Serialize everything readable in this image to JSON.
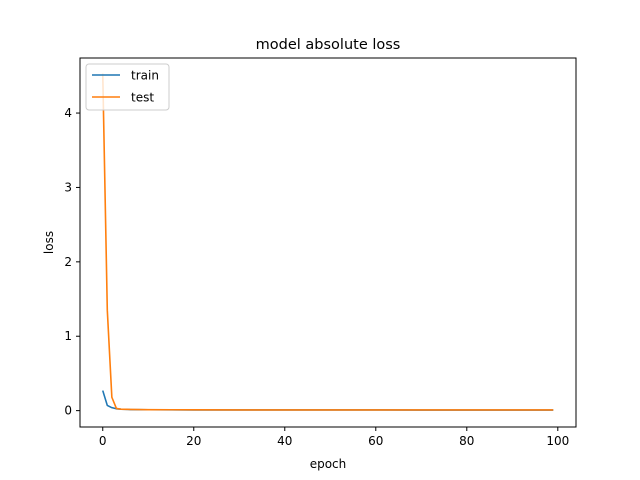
{
  "chart_data": {
    "type": "line",
    "title": "model absolute loss",
    "xlabel": "epoch",
    "ylabel": "loss",
    "xlim": [
      -5,
      104
    ],
    "ylim": [
      -0.22,
      4.74
    ],
    "xticks": [
      0,
      20,
      40,
      60,
      80,
      100
    ],
    "yticks": [
      0,
      1,
      2,
      3,
      4
    ],
    "grid": false,
    "legend_position": "upper left",
    "series": [
      {
        "name": "train",
        "color": "#1f77b4",
        "x": [
          0,
          1,
          2,
          3,
          4,
          5,
          6,
          8,
          10,
          15,
          20,
          30,
          40,
          50,
          60,
          70,
          80,
          90,
          99
        ],
        "values": [
          0.27,
          0.07,
          0.04,
          0.025,
          0.02,
          0.018,
          0.015,
          0.013,
          0.012,
          0.011,
          0.01,
          0.01,
          0.009,
          0.009,
          0.009,
          0.008,
          0.008,
          0.008,
          0.008
        ]
      },
      {
        "name": "test",
        "color": "#ff7f0e",
        "x": [
          0,
          1,
          2,
          3,
          4,
          5,
          6,
          8,
          10,
          15,
          20,
          30,
          40,
          50,
          60,
          70,
          80,
          90,
          99
        ],
        "values": [
          4.53,
          1.35,
          0.18,
          0.03,
          0.02,
          0.018,
          0.016,
          0.014,
          0.013,
          0.012,
          0.011,
          0.01,
          0.01,
          0.01,
          0.009,
          0.009,
          0.009,
          0.009,
          0.009
        ]
      }
    ]
  }
}
